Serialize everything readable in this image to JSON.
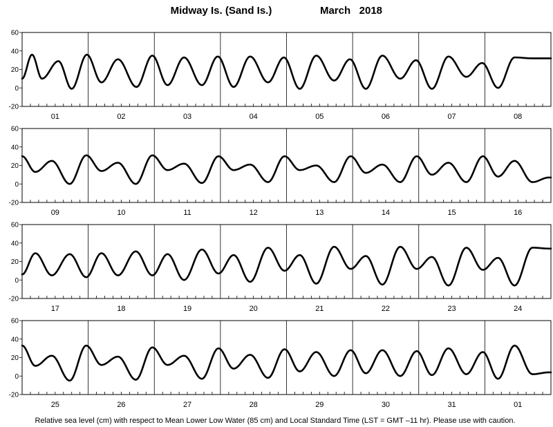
{
  "title": "Midway Is. (Sand Is.)",
  "month_label": "March   2018",
  "footer": "Relative sea level (cm) with respect to Mean Lower Low Water (85 cm) and Local Standard Time (LST = GMT –11 hr). Please use with caution.",
  "chart_data": [
    {
      "type": "line",
      "panel": 1,
      "categories": [
        "01",
        "02",
        "03",
        "04",
        "05",
        "06",
        "07",
        "08"
      ],
      "ylim": [
        -20,
        60
      ],
      "yticks": [
        -20,
        0,
        20,
        40,
        60
      ],
      "series": [
        {
          "x": [
            0.0,
            0.15,
            0.3,
            0.55,
            0.75,
            0.98,
            1.2,
            1.45,
            1.73,
            1.97,
            2.2,
            2.45,
            2.72,
            2.96,
            3.2,
            3.45,
            3.72,
            3.96,
            4.2,
            4.45,
            4.72,
            4.96,
            5.2,
            5.45,
            5.72,
            5.96,
            6.2,
            6.45,
            6.72,
            6.96,
            7.2,
            7.45,
            7.72,
            7.96,
            8.0
          ],
          "y": [
            10,
            36,
            10,
            29,
            -1,
            36,
            6,
            31,
            1,
            35,
            3,
            33,
            3,
            34,
            1,
            34,
            6,
            33,
            -1,
            35,
            8,
            31,
            -1,
            35,
            10,
            30,
            -1,
            34,
            12,
            27,
            0,
            33,
            32,
            32,
            32
          ]
        }
      ]
    },
    {
      "type": "line",
      "panel": 2,
      "categories": [
        "09",
        "10",
        "11",
        "12",
        "13",
        "14",
        "15",
        "16"
      ],
      "ylim": [
        -20,
        60
      ],
      "yticks": [
        -20,
        0,
        20,
        40,
        60
      ],
      "series": [
        {
          "x": [
            0.0,
            0.2,
            0.45,
            0.72,
            0.97,
            1.2,
            1.45,
            1.72,
            1.97,
            2.2,
            2.45,
            2.72,
            2.97,
            3.2,
            3.45,
            3.72,
            3.97,
            4.2,
            4.45,
            4.72,
            4.97,
            5.2,
            5.45,
            5.72,
            5.97,
            6.2,
            6.45,
            6.72,
            6.97,
            7.2,
            7.45,
            7.72,
            7.97,
            8.0
          ],
          "y": [
            30,
            13,
            25,
            0,
            31,
            14,
            23,
            0,
            31,
            15,
            22,
            1,
            30,
            15,
            21,
            2,
            30,
            15,
            20,
            2,
            30,
            12,
            21,
            2,
            30,
            10,
            23,
            2,
            30,
            8,
            25,
            2,
            7,
            7
          ]
        }
      ]
    },
    {
      "type": "line",
      "panel": 3,
      "categories": [
        "17",
        "18",
        "19",
        "20",
        "21",
        "22",
        "23",
        "24"
      ],
      "ylim": [
        -20,
        60
      ],
      "yticks": [
        -20,
        0,
        20,
        40,
        60
      ],
      "series": [
        {
          "x": [
            0.0,
            0.2,
            0.45,
            0.72,
            0.97,
            1.2,
            1.45,
            1.72,
            1.97,
            2.2,
            2.45,
            2.72,
            2.97,
            3.2,
            3.45,
            3.72,
            3.97,
            4.2,
            4.45,
            4.72,
            4.97,
            5.2,
            5.45,
            5.72,
            5.97,
            6.2,
            6.45,
            6.72,
            6.97,
            7.2,
            7.45,
            7.72,
            7.97,
            8.0
          ],
          "y": [
            6,
            29,
            5,
            28,
            3,
            29,
            5,
            31,
            5,
            28,
            0,
            33,
            7,
            27,
            -2,
            35,
            10,
            27,
            -4,
            36,
            12,
            26,
            -5,
            36,
            12,
            25,
            -6,
            35,
            11,
            24,
            -6,
            35,
            34,
            34
          ]
        }
      ]
    },
    {
      "type": "line",
      "panel": 4,
      "categories": [
        "25",
        "26",
        "27",
        "28",
        "29",
        "30",
        "31",
        "01"
      ],
      "ylim": [
        -20,
        60
      ],
      "yticks": [
        -20,
        0,
        20,
        40,
        60
      ],
      "series": [
        {
          "x": [
            0.0,
            0.2,
            0.45,
            0.72,
            0.97,
            1.2,
            1.45,
            1.72,
            1.97,
            2.2,
            2.45,
            2.72,
            2.97,
            3.2,
            3.45,
            3.72,
            3.97,
            4.2,
            4.45,
            4.72,
            4.97,
            5.2,
            5.45,
            5.72,
            5.97,
            6.2,
            6.45,
            6.72,
            6.97,
            7.2,
            7.45,
            7.72,
            7.97,
            8.0
          ],
          "y": [
            33,
            11,
            22,
            -5,
            33,
            12,
            21,
            -4,
            31,
            12,
            22,
            -3,
            30,
            8,
            23,
            -2,
            29,
            5,
            26,
            0,
            28,
            3,
            28,
            0,
            27,
            1,
            30,
            2,
            26,
            -3,
            33,
            2,
            4,
            4
          ]
        }
      ]
    }
  ]
}
